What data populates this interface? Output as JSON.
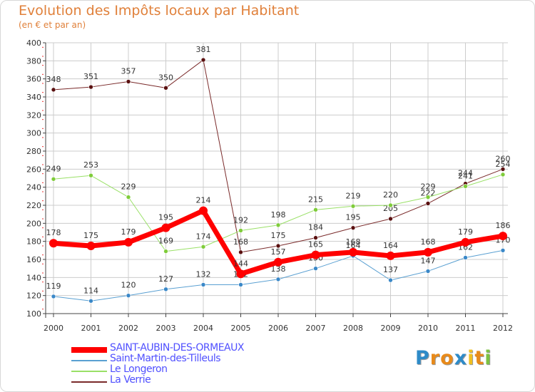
{
  "colors": {
    "title": "#e0803a",
    "grid": "#cccccc",
    "legend_text": "#5050ff",
    "tick_marks": "#ee3333"
  },
  "chart_data": {
    "type": "line",
    "title": "Evolution des Impôts locaux par Habitant",
    "subtitle": "(en € et par an)",
    "xlabel": "",
    "ylabel": "",
    "ylim": [
      100,
      400
    ],
    "y_ticks": [
      100,
      120,
      140,
      160,
      180,
      200,
      220,
      240,
      260,
      280,
      300,
      320,
      340,
      360,
      380,
      400
    ],
    "categories": [
      "2000",
      "2001",
      "2002",
      "2003",
      "2004",
      "2005",
      "2006",
      "2007",
      "2008",
      "2009",
      "2010",
      "2011",
      "2012"
    ],
    "grid": true,
    "legend_position": "bottom-left",
    "series": [
      {
        "name": "La Verrie",
        "color": "#7a2a2a",
        "marker": "#5a1010",
        "width": 1,
        "values": [
          348,
          351,
          357,
          350,
          381,
          168,
          175,
          184,
          195,
          205,
          222,
          244,
          260
        ]
      },
      {
        "name": "Le Longeron",
        "color": "#99e066",
        "marker": "#7fcc3a",
        "width": 1,
        "values": [
          249,
          253,
          229,
          169,
          174,
          192,
          198,
          215,
          219,
          220,
          229,
          241,
          254
        ]
      },
      {
        "name": "Saint-Martin-des-Tilleuls",
        "color": "#5aa0d2",
        "marker": "#3a88c8",
        "width": 1,
        "values": [
          119,
          114,
          120,
          127,
          132,
          132,
          138,
          150,
          164,
          137,
          147,
          162,
          170
        ]
      },
      {
        "name": "SAINT-AUBIN-DES-ORMEAUX",
        "color": "#ff0000",
        "marker": "#ff0000",
        "width": 7,
        "values": [
          178,
          175,
          179,
          195,
          214,
          144,
          157,
          165,
          168,
          164,
          168,
          179,
          186
        ]
      }
    ],
    "legend_order": [
      "SAINT-AUBIN-DES-ORMEAUX",
      "Saint-Martin-des-Tilleuls",
      "Le Longeron",
      "La Verrie"
    ]
  },
  "logo": {
    "letters": [
      "P",
      "r",
      "o",
      "x",
      "i",
      "t",
      "i"
    ],
    "colors": [
      "#2e8bc8",
      "#e88a1a",
      "#e88a1a",
      "#2e8bc8",
      "#f0c020",
      "#e88a1a",
      "#7cc242"
    ]
  }
}
